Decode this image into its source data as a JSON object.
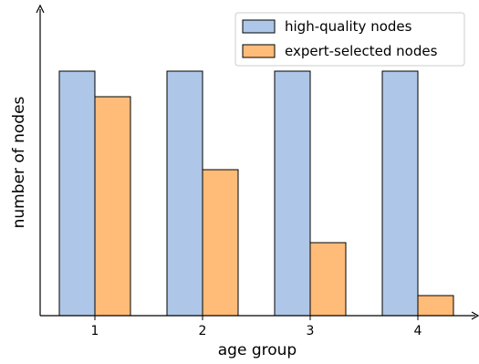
{
  "chart_data": {
    "type": "bar",
    "categories": [
      "1",
      "2",
      "3",
      "4"
    ],
    "series": [
      {
        "name": "high-quality nodes",
        "values": [
          67,
          67,
          67,
          67
        ],
        "color": "#aec7e8"
      },
      {
        "name": "expert-selected nodes",
        "values": [
          60,
          40,
          20,
          5.5
        ],
        "color": "#ffbb78"
      }
    ],
    "xlabel": "age group",
    "ylabel": "number of nodes",
    "ylim": [
      0,
      75
    ],
    "yticks": "none",
    "grid": false,
    "legend": "top-right",
    "edge_color": "#000000"
  }
}
